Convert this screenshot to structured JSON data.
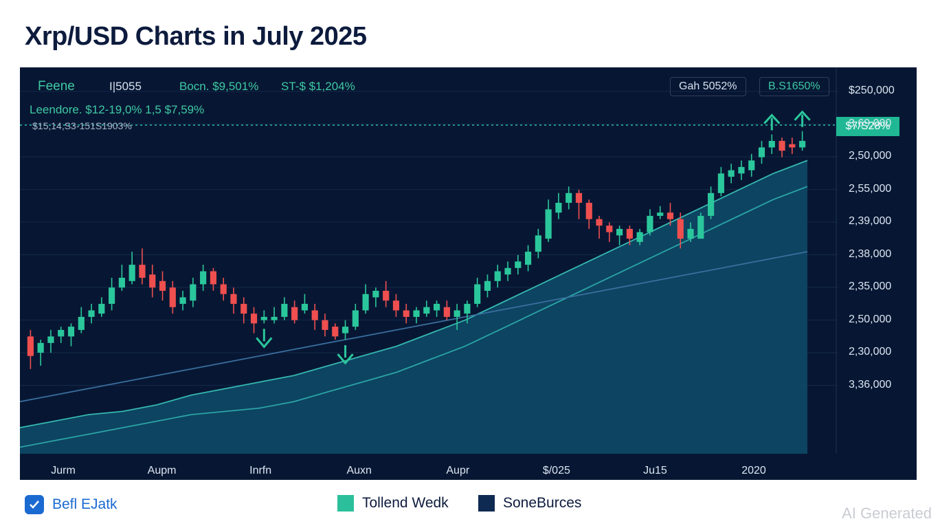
{
  "page": {
    "title": "Xrp/USD Charts in July 2025",
    "watermark": "AI Generated"
  },
  "header": {
    "label1": "Feene",
    "label2": "I|5055",
    "label3": "Bocn. $9,501%",
    "label4": "ST-$ $1,204%",
    "legend_line": "Leendore. $12-19,0% 1,5 $7,59%",
    "sub_line": "$15,14,S3-151S1903%",
    "box1": "Gah 5052%",
    "box2": "B.S1650%",
    "price_tag": "$7/S28%"
  },
  "legend": {
    "brand": "Befl EJatk",
    "items": [
      {
        "label": "Tollend Wedk",
        "color": "#2bbf9b"
      },
      {
        "label": "SoneBurces",
        "color": "#0f2a52"
      }
    ]
  },
  "chart_data": {
    "type": "candlestick",
    "title": "Xrp/USD Charts in July 2025",
    "y_tick_labels": [
      "$250,000",
      "3,69,000",
      "2,50,000",
      "2,55,000",
      "2,39,000",
      "2,38,000",
      "2,35,000",
      "2,50,000",
      "2,30,000",
      "3,36,000"
    ],
    "x_tick_labels": [
      "Jurm",
      "Aupm",
      "Inrfn",
      "Auxn",
      "Aupr",
      "$/025",
      "Ju15",
      "2020"
    ],
    "y_range": [
      0,
      100
    ],
    "candles": [
      {
        "o": 36,
        "c": 30,
        "h": 38,
        "l": 26
      },
      {
        "o": 31,
        "c": 34,
        "h": 35,
        "l": 27
      },
      {
        "o": 34,
        "c": 36,
        "h": 38,
        "l": 31
      },
      {
        "o": 36,
        "c": 38,
        "h": 39,
        "l": 34
      },
      {
        "o": 36,
        "c": 39,
        "h": 40,
        "l": 33
      },
      {
        "o": 38,
        "c": 42,
        "h": 45,
        "l": 37
      },
      {
        "o": 42,
        "c": 44,
        "h": 46,
        "l": 40
      },
      {
        "o": 43,
        "c": 46,
        "h": 48,
        "l": 42
      },
      {
        "o": 46,
        "c": 51,
        "h": 54,
        "l": 44
      },
      {
        "o": 51,
        "c": 54,
        "h": 58,
        "l": 50
      },
      {
        "o": 53,
        "c": 58,
        "h": 62,
        "l": 52
      },
      {
        "o": 58,
        "c": 54,
        "h": 63,
        "l": 52
      },
      {
        "o": 55,
        "c": 51,
        "h": 58,
        "l": 48
      },
      {
        "o": 53,
        "c": 50,
        "h": 56,
        "l": 47
      },
      {
        "o": 51,
        "c": 45,
        "h": 53,
        "l": 43
      },
      {
        "o": 46,
        "c": 48,
        "h": 50,
        "l": 44
      },
      {
        "o": 47,
        "c": 52,
        "h": 54,
        "l": 45
      },
      {
        "o": 52,
        "c": 56,
        "h": 58,
        "l": 50
      },
      {
        "o": 56,
        "c": 52,
        "h": 57,
        "l": 50
      },
      {
        "o": 52,
        "c": 49,
        "h": 54,
        "l": 47
      },
      {
        "o": 49,
        "c": 46,
        "h": 51,
        "l": 43
      },
      {
        "o": 46,
        "c": 43,
        "h": 48,
        "l": 40
      },
      {
        "o": 43,
        "c": 40,
        "h": 45,
        "l": 37
      },
      {
        "o": 41,
        "c": 42,
        "h": 44,
        "l": 40
      },
      {
        "o": 41,
        "c": 42,
        "h": 45,
        "l": 40
      },
      {
        "o": 42,
        "c": 46,
        "h": 48,
        "l": 41
      },
      {
        "o": 45,
        "c": 41,
        "h": 47,
        "l": 40
      },
      {
        "o": 44,
        "c": 46,
        "h": 49,
        "l": 43
      },
      {
        "o": 44,
        "c": 41,
        "h": 46,
        "l": 38
      },
      {
        "o": 41,
        "c": 38,
        "h": 43,
        "l": 36
      },
      {
        "o": 39,
        "c": 36,
        "h": 40,
        "l": 35
      },
      {
        "o": 37,
        "c": 39,
        "h": 41,
        "l": 35
      },
      {
        "o": 39,
        "c": 44,
        "h": 46,
        "l": 38
      },
      {
        "o": 44,
        "c": 49,
        "h": 52,
        "l": 43
      },
      {
        "o": 48,
        "c": 50,
        "h": 51,
        "l": 45
      },
      {
        "o": 50,
        "c": 47,
        "h": 53,
        "l": 45
      },
      {
        "o": 47,
        "c": 44,
        "h": 49,
        "l": 42
      },
      {
        "o": 44,
        "c": 42,
        "h": 46,
        "l": 40
      },
      {
        "o": 42,
        "c": 44,
        "h": 45,
        "l": 40
      },
      {
        "o": 43,
        "c": 45,
        "h": 47,
        "l": 42
      },
      {
        "o": 44,
        "c": 46,
        "h": 47,
        "l": 42
      },
      {
        "o": 45,
        "c": 42,
        "h": 47,
        "l": 41
      },
      {
        "o": 42,
        "c": 44,
        "h": 46,
        "l": 38
      },
      {
        "o": 43,
        "c": 46,
        "h": 47,
        "l": 40
      },
      {
        "o": 46,
        "c": 52,
        "h": 54,
        "l": 45
      },
      {
        "o": 50,
        "c": 53,
        "h": 55,
        "l": 48
      },
      {
        "o": 53,
        "c": 56,
        "h": 58,
        "l": 51
      },
      {
        "o": 55,
        "c": 57,
        "h": 59,
        "l": 53
      },
      {
        "o": 57,
        "c": 59,
        "h": 61,
        "l": 55
      },
      {
        "o": 58,
        "c": 62,
        "h": 64,
        "l": 56
      },
      {
        "o": 62,
        "c": 67,
        "h": 69,
        "l": 60
      },
      {
        "o": 66,
        "c": 75,
        "h": 78,
        "l": 65
      },
      {
        "o": 74,
        "c": 77,
        "h": 80,
        "l": 72
      },
      {
        "o": 77,
        "c": 80,
        "h": 82,
        "l": 75
      },
      {
        "o": 80,
        "c": 77,
        "h": 81,
        "l": 72
      },
      {
        "o": 77,
        "c": 72,
        "h": 78,
        "l": 69
      },
      {
        "o": 72,
        "c": 70,
        "h": 73,
        "l": 66
      },
      {
        "o": 70,
        "c": 68,
        "h": 71,
        "l": 65
      },
      {
        "o": 67,
        "c": 69,
        "h": 70,
        "l": 64
      },
      {
        "o": 69,
        "c": 66,
        "h": 70,
        "l": 64
      },
      {
        "o": 65,
        "c": 68,
        "h": 69,
        "l": 64
      },
      {
        "o": 68,
        "c": 73,
        "h": 75,
        "l": 67
      },
      {
        "o": 73,
        "c": 74,
        "h": 76,
        "l": 72
      },
      {
        "o": 74,
        "c": 72,
        "h": 77,
        "l": 70
      },
      {
        "o": 72,
        "c": 66,
        "h": 74,
        "l": 63
      },
      {
        "o": 66,
        "c": 69,
        "h": 71,
        "l": 65
      },
      {
        "o": 66,
        "c": 73,
        "h": 74,
        "l": 66
      },
      {
        "o": 73,
        "c": 80,
        "h": 82,
        "l": 72
      },
      {
        "o": 80,
        "c": 86,
        "h": 88,
        "l": 79
      },
      {
        "o": 85,
        "c": 87,
        "h": 89,
        "l": 83
      },
      {
        "o": 86,
        "c": 88,
        "h": 90,
        "l": 84
      },
      {
        "o": 87,
        "c": 90,
        "h": 92,
        "l": 85
      },
      {
        "o": 91,
        "c": 94,
        "h": 96,
        "l": 89
      },
      {
        "o": 94,
        "c": 96,
        "h": 98,
        "l": 92
      },
      {
        "o": 96,
        "c": 93,
        "h": 97,
        "l": 91
      },
      {
        "o": 95,
        "c": 94,
        "h": 97,
        "l": 92
      },
      {
        "o": 94,
        "c": 96,
        "h": 99,
        "l": 93
      }
    ],
    "moving_averages": [
      {
        "name": "fast",
        "values": [
          8,
          10,
          12,
          13,
          15,
          18,
          20,
          22,
          24,
          27,
          30,
          33,
          37,
          41,
          46,
          51,
          56,
          61,
          66,
          71,
          76,
          81,
          86,
          90
        ]
      },
      {
        "name": "medium",
        "values": [
          2,
          4,
          6,
          8,
          10,
          12,
          13,
          14,
          16,
          19,
          22,
          25,
          29,
          33,
          38,
          43,
          48,
          53,
          58,
          63,
          68,
          73,
          78,
          82
        ]
      },
      {
        "name": "slow",
        "values": [
          16,
          18,
          20,
          22,
          24,
          26,
          28,
          30,
          32,
          34,
          36,
          38,
          40,
          42,
          44,
          46,
          48,
          50,
          52,
          54,
          56,
          58,
          60,
          62
        ]
      }
    ],
    "markers": [
      {
        "index": 23,
        "direction": "down"
      },
      {
        "index": 31,
        "direction": "down"
      },
      {
        "index": 73,
        "direction": "up"
      },
      {
        "index": 76,
        "direction": "up"
      }
    ],
    "current_price_label": "$7/S28%"
  }
}
